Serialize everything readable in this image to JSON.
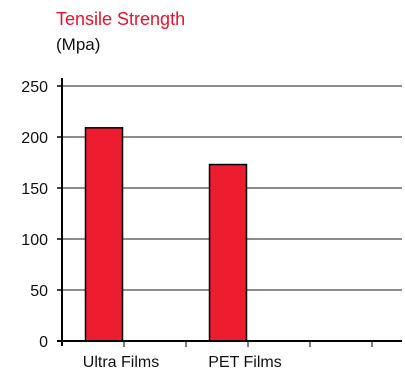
{
  "chart_data": {
    "type": "bar",
    "title": "Tensile Strength",
    "subtitle": "(Mpa)",
    "categories": [
      "Ultra Films",
      "PET Films"
    ],
    "values": [
      209,
      173
    ],
    "yticks": [
      0,
      50,
      100,
      150,
      200,
      250
    ],
    "ylim": [
      0,
      250
    ],
    "grid": true,
    "legend": "none",
    "bar_color": "#ed1c2e",
    "title_color": "#e8112d"
  }
}
